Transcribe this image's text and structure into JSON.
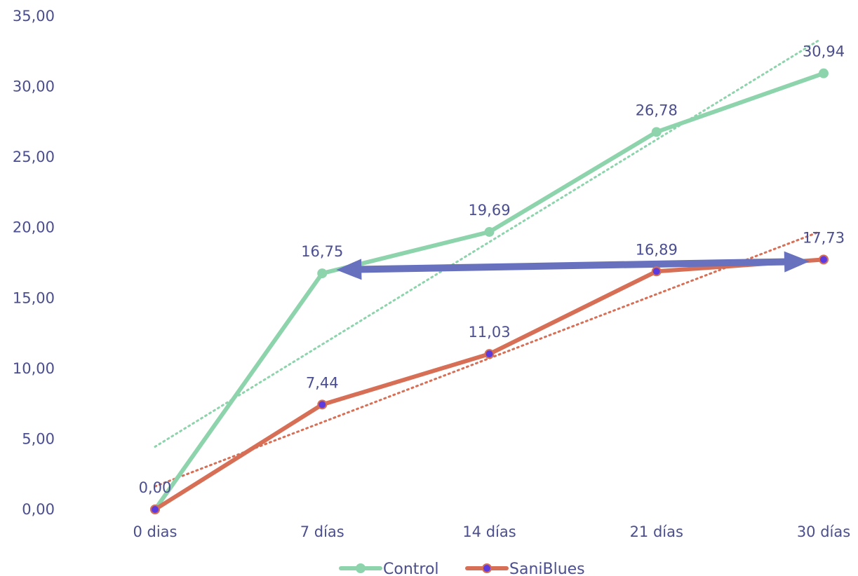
{
  "chart_data": {
    "type": "line",
    "title": "",
    "xlabel": "",
    "ylabel": "",
    "categories": [
      "0 dias",
      "7 días",
      "14 días",
      "21 días",
      "30 días"
    ],
    "ylim": [
      0,
      35
    ],
    "ytick_labels": [
      "0,00",
      "5,00",
      "10,00",
      "15,00",
      "20,00",
      "25,00",
      "30,00",
      "35,00"
    ],
    "grid": false,
    "legend_position": "bottom",
    "series": [
      {
        "name": "Control",
        "values": [
          0.0,
          16.75,
          19.69,
          26.78,
          30.94
        ],
        "labels": [
          "0,00",
          "16,75",
          "19,69",
          "26,78",
          "30,94"
        ],
        "color": "#8DD4AC",
        "trendline": "linear dotted"
      },
      {
        "name": "SaniBlues",
        "values": [
          0.0,
          7.44,
          11.03,
          16.89,
          17.73
        ],
        "labels": [
          "",
          "7,44",
          "11,03",
          "16,89",
          "17,73"
        ],
        "color": "#D76F56",
        "marker_color": "#5B3BE0",
        "trendline": "linear dotted"
      }
    ],
    "annotation": {
      "type": "double-arrow",
      "from": {
        "category": "7 días",
        "value": 17.0
      },
      "to": {
        "category": "30 días",
        "value": 17.6
      },
      "color": "#6771BE"
    },
    "label_color": "#4B4E8F"
  }
}
